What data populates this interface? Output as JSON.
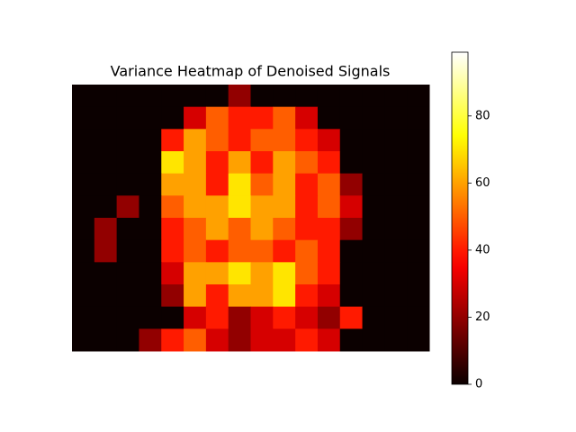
{
  "chart_data": {
    "type": "heatmap",
    "title": "Variance Heatmap of Denoised Signals",
    "colormap": "hot",
    "values": [
      [
        0,
        0,
        0,
        0,
        0,
        0,
        0,
        20,
        0,
        0,
        0,
        0,
        0,
        0,
        0,
        0
      ],
      [
        0,
        0,
        0,
        0,
        0,
        30,
        50,
        40,
        40,
        50,
        30,
        0,
        0,
        0,
        0,
        0
      ],
      [
        0,
        0,
        0,
        0,
        40,
        60,
        50,
        40,
        50,
        50,
        40,
        30,
        0,
        0,
        0,
        0
      ],
      [
        0,
        0,
        0,
        0,
        70,
        60,
        40,
        60,
        40,
        60,
        50,
        40,
        0,
        0,
        0,
        0
      ],
      [
        0,
        0,
        0,
        0,
        60,
        60,
        40,
        70,
        50,
        60,
        40,
        50,
        20,
        0,
        0,
        0
      ],
      [
        0,
        0,
        20,
        0,
        50,
        60,
        60,
        70,
        60,
        60,
        40,
        50,
        30,
        0,
        0,
        0
      ],
      [
        0,
        20,
        0,
        0,
        40,
        50,
        60,
        50,
        60,
        50,
        40,
        40,
        20,
        0,
        0,
        0
      ],
      [
        0,
        20,
        0,
        0,
        40,
        50,
        40,
        50,
        50,
        40,
        50,
        40,
        0,
        0,
        0,
        0
      ],
      [
        0,
        0,
        0,
        0,
        30,
        60,
        60,
        70,
        60,
        70,
        50,
        40,
        0,
        0,
        0,
        0
      ],
      [
        0,
        0,
        0,
        0,
        20,
        60,
        40,
        60,
        60,
        70,
        40,
        30,
        0,
        0,
        0,
        0
      ],
      [
        0,
        0,
        0,
        0,
        0,
        30,
        40,
        20,
        30,
        40,
        30,
        20,
        40,
        0,
        0,
        0
      ],
      [
        0,
        0,
        0,
        20,
        40,
        50,
        30,
        20,
        30,
        30,
        40,
        30,
        0,
        0,
        0,
        0
      ]
    ],
    "clim": [
      0,
      99
    ],
    "cticks": [
      0,
      20,
      40,
      60,
      80
    ]
  }
}
